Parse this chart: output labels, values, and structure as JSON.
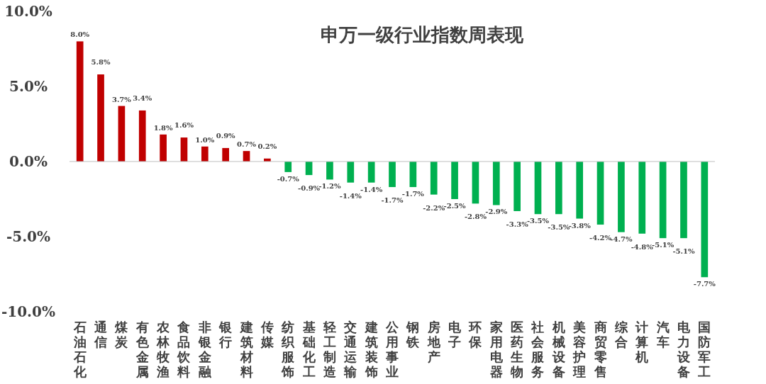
{
  "chart_data": {
    "type": "bar",
    "title": "申万一级行业指数周表现",
    "categories": [
      "石油石化",
      "通信",
      "煤炭",
      "有色金属",
      "农林牧渔",
      "食品饮料",
      "非银金融",
      "银行",
      "建筑材料",
      "传媒",
      "纺织服饰",
      "基础化工",
      "轻工制造",
      "交通运输",
      "建筑装饰",
      "公用事业",
      "钢铁",
      "房地产",
      "电子",
      "环保",
      "家用电器",
      "医药生物",
      "社会服务",
      "机械设备",
      "美容护理",
      "商贸零售",
      "综合",
      "计算机",
      "汽车",
      "电力设备",
      "国防军工"
    ],
    "values": [
      8.0,
      5.8,
      3.7,
      3.4,
      1.8,
      1.6,
      1.0,
      0.9,
      0.7,
      0.2,
      -0.7,
      -0.9,
      -1.2,
      -1.4,
      -1.4,
      -1.7,
      -1.7,
      -2.2,
      -2.5,
      -2.8,
      -2.9,
      -3.3,
      -3.5,
      -3.5,
      -3.8,
      -4.2,
      -4.7,
      -4.8,
      -5.1,
      -5.1,
      -7.7
    ],
    "colors": [
      "#c00000",
      "#c00000",
      "#c00000",
      "#c00000",
      "#c00000",
      "#c00000",
      "#c00000",
      "#c00000",
      "#c00000",
      "#c00000",
      "#00b050",
      "#00b050",
      "#00b050",
      "#00b050",
      "#00b050",
      "#00b050",
      "#00b050",
      "#00b050",
      "#00b050",
      "#00b050",
      "#00b050",
      "#00b050",
      "#00b050",
      "#00b050",
      "#00b050",
      "#00b050",
      "#00b050",
      "#00b050",
      "#00b050",
      "#00b050",
      "#00b050"
    ],
    "ylim": [
      -10,
      10
    ],
    "yticks": [
      {
        "value": -10,
        "label": "-10.0%"
      },
      {
        "value": -5,
        "label": "-5.0%"
      },
      {
        "value": 0,
        "label": "0.0%"
      },
      {
        "value": 5,
        "label": "5.0%"
      },
      {
        "value": 10,
        "label": "10.0%"
      }
    ],
    "value_labels": [
      "8.0%",
      "5.8%",
      "3.7%",
      "3.4%",
      "1.8%",
      "1.6%",
      "1.0%",
      "0.9%",
      "0.7%",
      "0.2%",
      "-0.7%",
      "-0.9%",
      "-1.2%",
      "-1.4%",
      "-1.4%",
      "-1.7%",
      "-1.7%",
      "-2.2%",
      "-2.5%",
      "-2.8%",
      "-2.9%",
      "-3.3%",
      "-3.5%",
      "-3.5%",
      "-3.8%",
      "-4.2%",
      "-4.7%",
      "-4.8%",
      "-5.1%",
      "-5.1%",
      "-7.7%"
    ]
  }
}
